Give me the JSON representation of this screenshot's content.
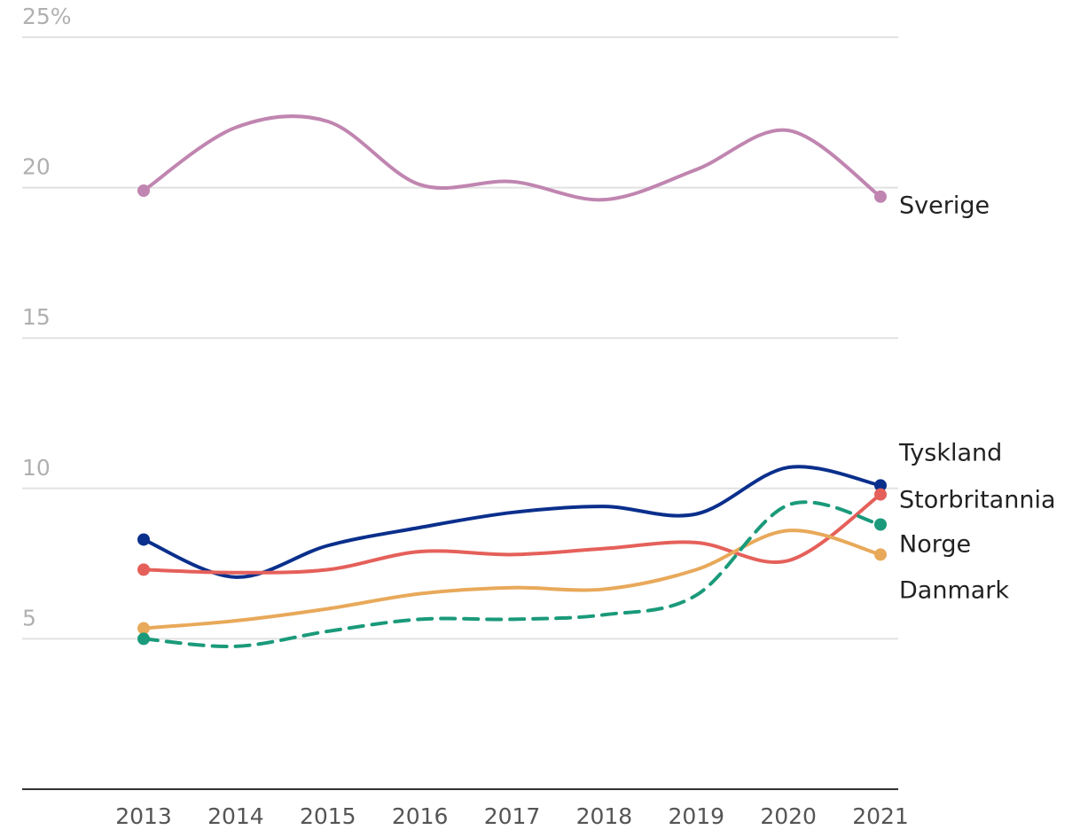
{
  "chart_data": {
    "type": "line",
    "categories": [
      "2013",
      "2014",
      "2015",
      "2016",
      "2017",
      "2018",
      "2019",
      "2020",
      "2021"
    ],
    "series": [
      {
        "name": "Sverige",
        "color": "#c085b0",
        "values": [
          19.9,
          22.0,
          22.2,
          20.1,
          20.2,
          19.6,
          20.6,
          21.9,
          19.7
        ]
      },
      {
        "name": "Tyskland",
        "color": "#0a2f8c",
        "values": [
          8.3,
          7.05,
          8.1,
          8.7,
          9.2,
          9.4,
          9.15,
          10.7,
          10.1
        ]
      },
      {
        "name": "Storbritannia",
        "color": "#e5605a",
        "values": [
          7.3,
          7.2,
          7.3,
          7.9,
          7.8,
          8.0,
          8.2,
          7.6,
          9.8
        ]
      },
      {
        "name": "Norge",
        "color": "#e8a95a",
        "values": [
          5.35,
          5.6,
          6.0,
          6.5,
          6.7,
          6.65,
          7.3,
          8.6,
          7.8
        ]
      },
      {
        "name": "Danmark",
        "color": "#1a9a7a",
        "dashed": true,
        "values": [
          5.0,
          4.75,
          5.25,
          5.65,
          5.65,
          5.8,
          6.45,
          9.45,
          8.8
        ]
      }
    ],
    "ylim": [
      0,
      25
    ],
    "yticks": [
      {
        "value": 25,
        "label": "25%"
      },
      20,
      15,
      10,
      5
    ],
    "grid": true
  }
}
